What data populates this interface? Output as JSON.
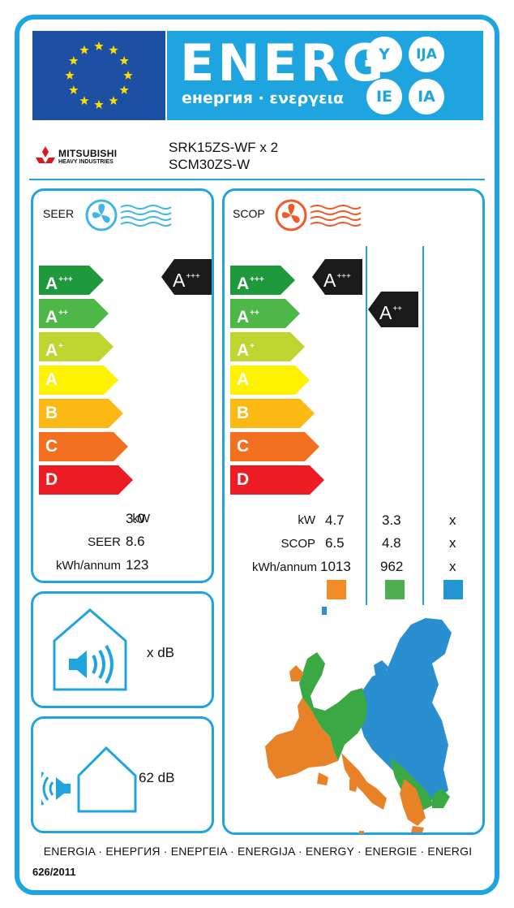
{
  "header": {
    "energy_word": "ENERG",
    "energy_sub": "енергия · ενεργεια",
    "languages": [
      "Y",
      "IJA",
      "IE",
      "IA"
    ],
    "colors": {
      "border": "#1ea5e0",
      "eu_blue": "#1d4fa2",
      "eu_star": "#ffdd00"
    }
  },
  "brand": {
    "logo_text_1": "MITSUBISHI",
    "logo_text_2": "HEAVY INDUSTRIES",
    "model_outdoor": "SRK15ZS-WF x 2",
    "model_indoor": "SCM30ZS-W"
  },
  "scale": [
    {
      "letter": "A",
      "plus": "+++",
      "color": "#1e9a3c"
    },
    {
      "letter": "A",
      "plus": "++",
      "color": "#4db848"
    },
    {
      "letter": "A",
      "plus": "+",
      "color": "#bed62f"
    },
    {
      "letter": "A",
      "plus": "",
      "color": "#fff200"
    },
    {
      "letter": "B",
      "plus": "",
      "color": "#fdb913"
    },
    {
      "letter": "C",
      "plus": "",
      "color": "#f37021"
    },
    {
      "letter": "D",
      "plus": "",
      "color": "#ed1c24"
    }
  ],
  "cooling": {
    "title": "SEER",
    "rating": {
      "letter": "A",
      "plus": "+++"
    },
    "labels": {
      "power": "kW",
      "efficiency": "SEER",
      "consumption": "kWh/annum"
    },
    "values": {
      "power": "3.0",
      "efficiency": "8.6",
      "consumption": "123"
    }
  },
  "heating": {
    "title": "SCOP",
    "ratings": [
      {
        "letter": "A",
        "plus": "+++"
      },
      {
        "letter": "A",
        "plus": "++"
      }
    ],
    "labels": {
      "power": "kW",
      "efficiency": "SCOP",
      "consumption": "kWh/annum"
    },
    "columns": [
      {
        "power": "4.7",
        "efficiency": "6.5",
        "consumption": "1013",
        "zone_color": "#f28c28"
      },
      {
        "power": "3.3",
        "efficiency": "4.8",
        "consumption": "962",
        "zone_color": "#4caf50"
      },
      {
        "power": "x",
        "efficiency": "x",
        "consumption": "x",
        "zone_color": "#2196d3"
      }
    ]
  },
  "noise": {
    "indoor": "x dB",
    "outdoor": "62 dB",
    "icons": [
      "house-speaker-icon",
      "outdoor-speaker-icon"
    ]
  },
  "footer": {
    "languages": "ENERGIA · ЕНЕРГИЯ · ΕΝΕΡΓΕΙΑ · ENERGIJA · ENERGY · ENERGIE · ENERGI",
    "regulation": "626/2011"
  }
}
